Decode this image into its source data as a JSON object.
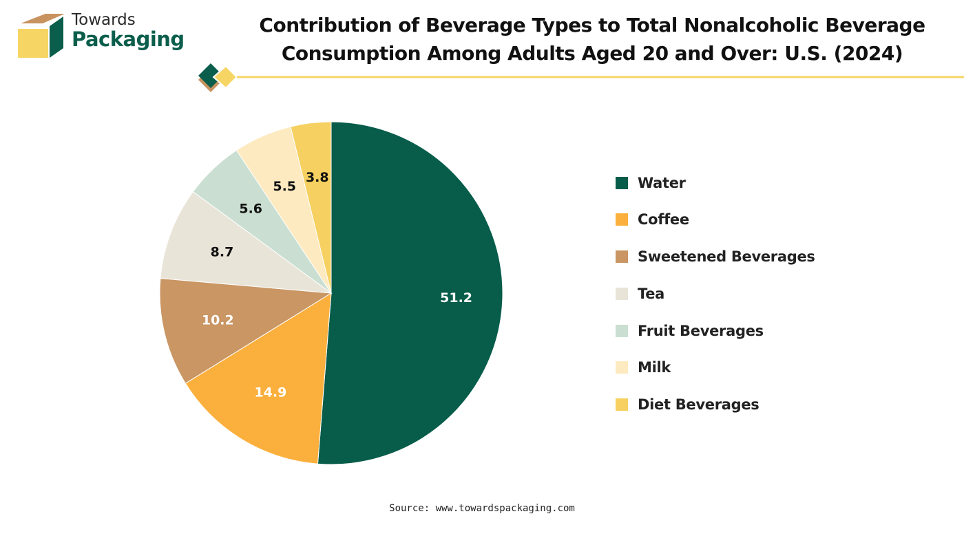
{
  "logo": {
    "line1": "Towards",
    "line2": "Packaging",
    "colors": {
      "green": "#0b5e4b",
      "tan": "#c8935f",
      "yellow": "#f6d565"
    }
  },
  "title_lines": [
    "Contribution of Beverage Types to Total Nonalcoholic Beverage",
    "Consumption Among Adults Aged 20 and Over: U.S. (2024)"
  ],
  "source": "Source: www.towardspackaging.com",
  "chart_data": {
    "type": "pie",
    "title": "Contribution of Beverage Types to Total Nonalcoholic Beverage Consumption Among Adults Aged 20 and Over: U.S. (2024)",
    "legend_placement": "right",
    "categories": [
      "Water",
      "Coffee",
      "Sweetened Beverages",
      "Tea",
      "Fruit Beverages",
      "Milk",
      "Diet Beverages"
    ],
    "values": [
      51.2,
      14.9,
      10.2,
      8.7,
      5.6,
      5.5,
      3.8
    ],
    "labels": [
      "51.2",
      "14.9",
      "10.2",
      "8.7",
      "5.6",
      "5.5",
      "3.8"
    ],
    "colors": [
      "#075c4a",
      "#fbb03d",
      "#c99664",
      "#e9e4d8",
      "#cadfd2",
      "#fdeac0",
      "#f6d060"
    ],
    "label_colors": [
      "#ffffff",
      "#ffffff",
      "#ffffff",
      "#111111",
      "#111111",
      "#111111",
      "#111111"
    ],
    "start_angle": "12 o'clock",
    "direction": "clockwise"
  }
}
